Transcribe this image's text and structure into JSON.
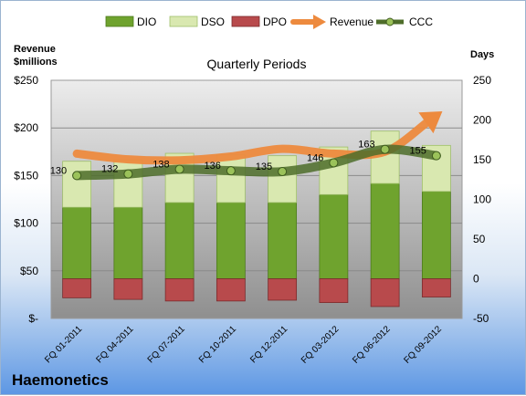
{
  "chart_data": {
    "type": "combo",
    "title": "Quarterly Periods",
    "company": "Haemonetics",
    "left_axis": {
      "label": "Revenue $millions",
      "range": [
        0,
        250
      ],
      "ticks": [
        "$-",
        "$50",
        "$100",
        "$150",
        "$200",
        "$250"
      ]
    },
    "right_axis": {
      "label": "Days",
      "range": [
        -50,
        250
      ],
      "ticks": [
        "-50",
        "0",
        "50",
        "100",
        "150",
        "200",
        "250"
      ]
    },
    "categories": [
      "FQ 01-2011",
      "FQ 04-2011",
      "FQ 07-2011",
      "FQ 10-2011",
      "FQ 12-2011",
      "FQ 03-2012",
      "FQ 06-2012",
      "FQ 09-2012"
    ],
    "series": [
      {
        "name": "DIO",
        "kind": "stacked-bar",
        "axis": "days",
        "color": "#6fa32e",
        "values": [
          90,
          90,
          96,
          96,
          96,
          106,
          120,
          110
        ]
      },
      {
        "name": "DSO",
        "kind": "stacked-bar",
        "axis": "days",
        "color": "#d9e8b0",
        "values": [
          58,
          60,
          62,
          60,
          59,
          60,
          66,
          58
        ]
      },
      {
        "name": "DPO",
        "kind": "stacked-bar",
        "axis": "days",
        "color": "#b84a4c",
        "values": [
          -24,
          -26,
          -28,
          -28,
          -27,
          -30,
          -35,
          -23
        ]
      },
      {
        "name": "Revenue",
        "kind": "line",
        "axis": "revenue",
        "color": "#ed8a3e",
        "values": [
          173,
          167,
          166,
          170,
          178,
          173,
          175,
          213
        ]
      },
      {
        "name": "CCC",
        "kind": "line",
        "axis": "days",
        "color": "#4e6d2a",
        "values": [
          130,
          132,
          138,
          136,
          135,
          146,
          163,
          155
        ],
        "labels": [
          "130",
          "132",
          "138",
          "136",
          "135",
          "146",
          "163",
          "155"
        ]
      }
    ]
  }
}
